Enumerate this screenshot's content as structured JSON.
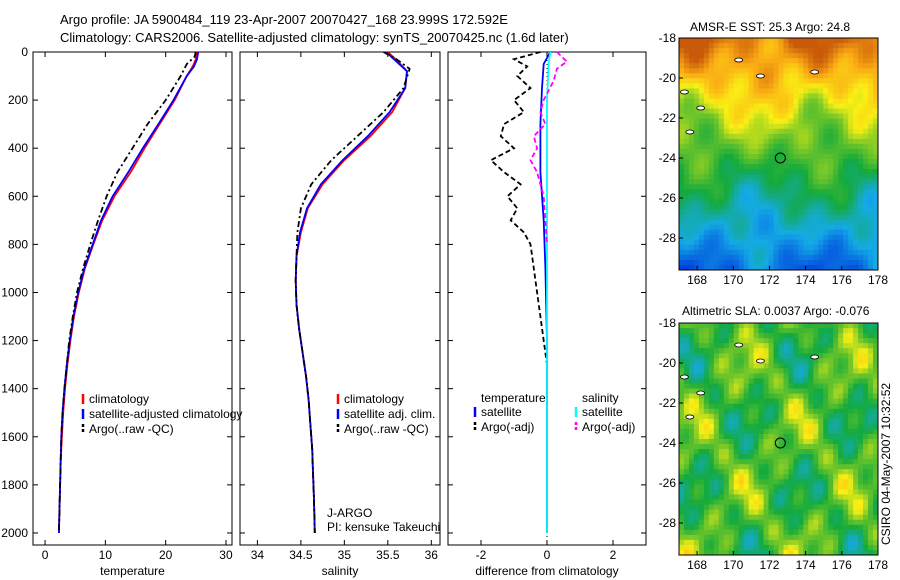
{
  "header": {
    "line1": "Argo profile: JA 5900484_119 23-Apr-2007 20070427_168 23.999S 172.592E",
    "line2": "Climatology: CARS2006. Satellite-adjusted climatology: synTS_20070425.nc (1.6d later)"
  },
  "footer": {
    "stamp": "CSIRO 04-May-2007 10:32:52"
  },
  "chart_data": [
    {
      "id": "temp",
      "type": "line",
      "xlabel": "temperature",
      "ylim": [
        2050,
        0
      ],
      "xlim": [
        -2,
        31
      ],
      "xticks": [
        0,
        10,
        20,
        30
      ],
      "yticks": [
        0,
        200,
        400,
        600,
        800,
        1000,
        1200,
        1400,
        1600,
        1800,
        2000
      ],
      "legend_title": "",
      "legend": [
        "climatology",
        "satellite-adjusted climatology",
        "Argo(..raw -QC)"
      ],
      "series": [
        {
          "name": "climatology",
          "color": "#ff0000",
          "points": [
            [
              25.2,
              0
            ],
            [
              25.0,
              30
            ],
            [
              24.5,
              60
            ],
            [
              23.5,
              100
            ],
            [
              21.5,
              200
            ],
            [
              19.0,
              300
            ],
            [
              16.5,
              400
            ],
            [
              14.2,
              500
            ],
            [
              11.5,
              600
            ],
            [
              9.5,
              700
            ],
            [
              8.0,
              800
            ],
            [
              6.6,
              900
            ],
            [
              5.6,
              1000
            ],
            [
              4.8,
              1100
            ],
            [
              4.2,
              1200
            ],
            [
              3.7,
              1300
            ],
            [
              3.3,
              1400
            ],
            [
              3.0,
              1500
            ],
            [
              2.8,
              1600
            ],
            [
              2.6,
              1700
            ],
            [
              2.5,
              1800
            ],
            [
              2.4,
              1900
            ],
            [
              2.3,
              2000
            ]
          ]
        },
        {
          "name": "satellite-adjusted climatology",
          "color": "#0000ff",
          "points": [
            [
              25.4,
              0
            ],
            [
              25.2,
              30
            ],
            [
              24.7,
              60
            ],
            [
              23.5,
              100
            ],
            [
              21.3,
              200
            ],
            [
              18.8,
              300
            ],
            [
              16.2,
              400
            ],
            [
              13.8,
              500
            ],
            [
              11.2,
              600
            ],
            [
              9.3,
              700
            ],
            [
              7.9,
              800
            ],
            [
              6.5,
              900
            ],
            [
              5.5,
              1000
            ],
            [
              4.7,
              1100
            ],
            [
              4.1,
              1200
            ],
            [
              3.6,
              1300
            ],
            [
              3.2,
              1400
            ],
            [
              2.9,
              1500
            ],
            [
              2.7,
              1600
            ],
            [
              2.6,
              1700
            ],
            [
              2.5,
              1800
            ],
            [
              2.4,
              1900
            ],
            [
              2.3,
              2000
            ]
          ]
        },
        {
          "name": "Argo(..raw -QC)",
          "color": "#000000",
          "dash": "6,3,2,3",
          "points": [
            [
              25.0,
              0
            ],
            [
              24.8,
              20
            ],
            [
              23.5,
              50
            ],
            [
              22.5,
              100
            ],
            [
              20.0,
              200
            ],
            [
              17.0,
              300
            ],
            [
              14.5,
              400
            ],
            [
              12.0,
              500
            ],
            [
              10.2,
              600
            ],
            [
              8.8,
              700
            ],
            [
              7.5,
              800
            ],
            [
              6.3,
              900
            ],
            [
              5.3,
              1000
            ],
            [
              4.6,
              1100
            ],
            [
              4.0,
              1200
            ],
            [
              3.6,
              1300
            ],
            [
              3.2,
              1400
            ],
            [
              2.9,
              1500
            ],
            [
              2.7,
              1600
            ],
            [
              2.6,
              1700
            ],
            [
              2.5,
              1800
            ],
            [
              2.4,
              1900
            ],
            [
              2.3,
              2000
            ]
          ]
        }
      ]
    },
    {
      "id": "sal",
      "type": "line",
      "xlabel": "salinity",
      "ylim": [
        2050,
        0
      ],
      "xlim": [
        33.8,
        36.1
      ],
      "xticks": [
        34,
        34.5,
        35,
        35.5,
        36
      ],
      "yticks": [
        0,
        200,
        400,
        600,
        800,
        1000,
        1200,
        1400,
        1600,
        1800,
        2000
      ],
      "legend_title": "",
      "legend": [
        "climatology",
        "satellite adj. clim.",
        "Argo(..raw -QC)"
      ],
      "annotation": [
        "J-ARGO",
        "PI: kensuke Takeuchi"
      ],
      "series": [
        {
          "name": "climatology",
          "color": "#ff0000",
          "points": [
            [
              35.5,
              0
            ],
            [
              35.62,
              40
            ],
            [
              35.72,
              80
            ],
            [
              35.7,
              150
            ],
            [
              35.55,
              250
            ],
            [
              35.3,
              350
            ],
            [
              35.0,
              450
            ],
            [
              34.75,
              550
            ],
            [
              34.58,
              650
            ],
            [
              34.5,
              750
            ],
            [
              34.45,
              850
            ],
            [
              34.44,
              950
            ],
            [
              34.45,
              1050
            ],
            [
              34.48,
              1150
            ],
            [
              34.52,
              1250
            ],
            [
              34.56,
              1350
            ],
            [
              34.59,
              1450
            ],
            [
              34.61,
              1550
            ],
            [
              34.63,
              1650
            ],
            [
              34.64,
              1750
            ],
            [
              34.65,
              1850
            ],
            [
              34.66,
              2000
            ]
          ]
        },
        {
          "name": "satellite adj. clim.",
          "color": "#0000ff",
          "points": [
            [
              35.48,
              0
            ],
            [
              35.6,
              40
            ],
            [
              35.72,
              80
            ],
            [
              35.7,
              150
            ],
            [
              35.52,
              250
            ],
            [
              35.27,
              350
            ],
            [
              34.98,
              450
            ],
            [
              34.73,
              550
            ],
            [
              34.57,
              650
            ],
            [
              34.49,
              750
            ],
            [
              34.45,
              850
            ],
            [
              34.44,
              950
            ],
            [
              34.45,
              1050
            ],
            [
              34.48,
              1150
            ],
            [
              34.52,
              1250
            ],
            [
              34.56,
              1350
            ],
            [
              34.59,
              1450
            ],
            [
              34.61,
              1550
            ],
            [
              34.63,
              1650
            ],
            [
              34.64,
              1750
            ],
            [
              34.65,
              1850
            ],
            [
              34.66,
              2000
            ]
          ]
        },
        {
          "name": "Argo(..raw -QC)",
          "color": "#000000",
          "dash": "6,3,2,3",
          "points": [
            [
              35.45,
              0
            ],
            [
              35.6,
              30
            ],
            [
              35.75,
              70
            ],
            [
              35.68,
              150
            ],
            [
              35.45,
              250
            ],
            [
              35.15,
              350
            ],
            [
              34.85,
              450
            ],
            [
              34.62,
              550
            ],
            [
              34.5,
              650
            ],
            [
              34.46,
              750
            ],
            [
              34.45,
              850
            ],
            [
              34.44,
              950
            ],
            [
              34.45,
              1050
            ],
            [
              34.48,
              1150
            ],
            [
              34.52,
              1250
            ],
            [
              34.56,
              1350
            ],
            [
              34.59,
              1450
            ],
            [
              34.61,
              1550
            ],
            [
              34.63,
              1650
            ],
            [
              34.64,
              1750
            ],
            [
              34.65,
              1850
            ],
            [
              34.66,
              2000
            ]
          ]
        }
      ]
    },
    {
      "id": "diff",
      "type": "line",
      "xlabel": "difference from climatology",
      "ylim": [
        2050,
        0
      ],
      "xlim": [
        -3,
        3
      ],
      "xticks": [
        -2,
        0,
        2
      ],
      "yticks": [
        0,
        200,
        400,
        600,
        800,
        1000,
        1200,
        1400,
        1600,
        1800,
        2000
      ],
      "legend_title": "temperature",
      "legend_title2": "salinity",
      "legend": [
        "satellite",
        "Argo(-adj)",
        "satellite",
        "Argo(-adj)"
      ],
      "series": [
        {
          "name": "temperature satellite",
          "color": "#0000ff",
          "points": [
            [
              0.1,
              0
            ],
            [
              -0.1,
              50
            ],
            [
              -0.15,
              150
            ],
            [
              -0.2,
              300
            ],
            [
              -0.2,
              500
            ],
            [
              -0.1,
              700
            ],
            [
              -0.05,
              900
            ],
            [
              0,
              1200
            ],
            [
              0,
              2000
            ]
          ]
        },
        {
          "name": "temperature Argo(-adj)",
          "color": "#000000",
          "dash": "5,3",
          "points": [
            [
              -0.2,
              0
            ],
            [
              -1.0,
              30
            ],
            [
              -0.6,
              60
            ],
            [
              -0.9,
              100
            ],
            [
              -0.5,
              150
            ],
            [
              -1.0,
              200
            ],
            [
              -0.7,
              250
            ],
            [
              -1.3,
              300
            ],
            [
              -1.4,
              350
            ],
            [
              -1.0,
              400
            ],
            [
              -1.7,
              450
            ],
            [
              -1.3,
              500
            ],
            [
              -0.8,
              550
            ],
            [
              -1.2,
              600
            ],
            [
              -0.9,
              650
            ],
            [
              -1.1,
              700
            ],
            [
              -0.7,
              750
            ],
            [
              -0.5,
              800
            ],
            [
              -0.4,
              900
            ],
            [
              -0.3,
              1000
            ],
            [
              -0.2,
              1100
            ],
            [
              -0.1,
              1200
            ],
            [
              0,
              1300
            ],
            [
              0,
              2000
            ]
          ]
        },
        {
          "name": "salinity satellite",
          "color": "#00ffff",
          "points": [
            [
              0.1,
              0
            ],
            [
              0.05,
              50
            ],
            [
              0.0,
              200
            ],
            [
              0.0,
              2000
            ]
          ]
        },
        {
          "name": "salinity Argo(-adj)",
          "color": "#ff00ff",
          "dash": "5,3",
          "points": [
            [
              0.3,
              0
            ],
            [
              0.6,
              40
            ],
            [
              0.3,
              70
            ],
            [
              0.2,
              120
            ],
            [
              -0.1,
              200
            ],
            [
              -0.2,
              250
            ],
            [
              -0.05,
              300
            ],
            [
              -0.4,
              350
            ],
            [
              -0.3,
              400
            ],
            [
              -0.5,
              450
            ],
            [
              -0.3,
              500
            ],
            [
              -0.1,
              600
            ],
            [
              0,
              800
            ]
          ]
        }
      ]
    },
    {
      "id": "sst_map",
      "type": "heatmap",
      "title": "AMSR-E SST: 25.3  Argo: 24.8",
      "xlim": [
        167,
        178
      ],
      "ylim": [
        -29.6,
        -18
      ],
      "xticks": [
        168,
        170,
        172,
        174,
        176,
        178
      ],
      "yticks": [
        -18,
        -20,
        -22,
        -24,
        -26,
        -28
      ],
      "marker": [
        172.6,
        -24.0
      ]
    },
    {
      "id": "sla_map",
      "type": "heatmap",
      "title": "Altimetric SLA: 0.0037  Argo: -0.076",
      "xlim": [
        167,
        178
      ],
      "ylim": [
        -29.6,
        -18
      ],
      "xticks": [
        168,
        170,
        172,
        174,
        176,
        178
      ],
      "yticks": [
        -18,
        -20,
        -22,
        -24,
        -26,
        -28
      ],
      "marker": [
        172.6,
        -24.0
      ]
    }
  ]
}
